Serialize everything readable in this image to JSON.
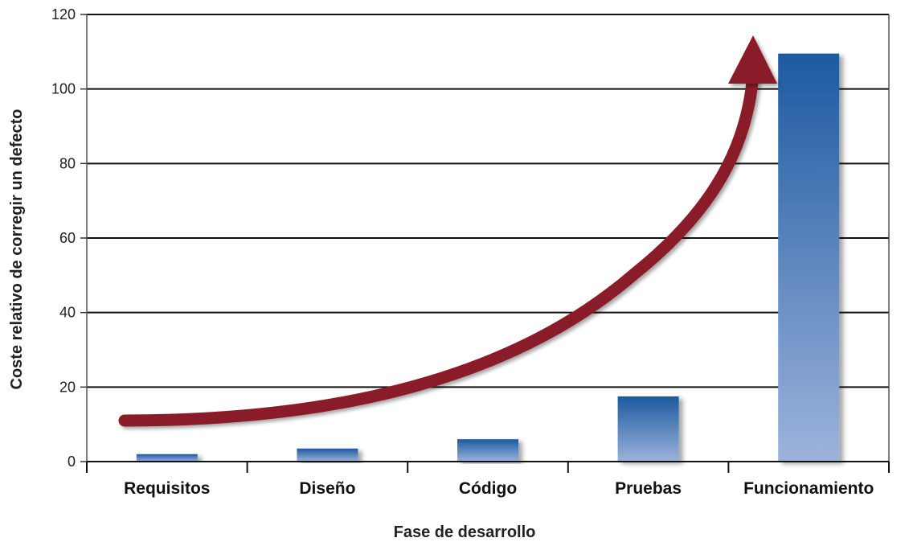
{
  "chart_data": {
    "type": "bar",
    "title": "",
    "xlabel": "Fase de desarrollo",
    "ylabel": "Coste relativo de corregir un defecto",
    "categories": [
      "Requisitos",
      "Diseño",
      "Código",
      "Pruebas",
      "Funcionamiento"
    ],
    "values": [
      2,
      3.5,
      6,
      17.5,
      109.5
    ],
    "ylim": [
      0,
      120
    ],
    "yticks": [
      0,
      20,
      40,
      60,
      80,
      100,
      120
    ],
    "grid": true,
    "legend": "none",
    "annotation": "curved arrow indicating exponential cost growth",
    "colors": {
      "bar_top": "#1c5aa0",
      "bar_bottom": "#9db3dc",
      "arrow": "#8a1c2b",
      "grid": "#111111"
    }
  }
}
